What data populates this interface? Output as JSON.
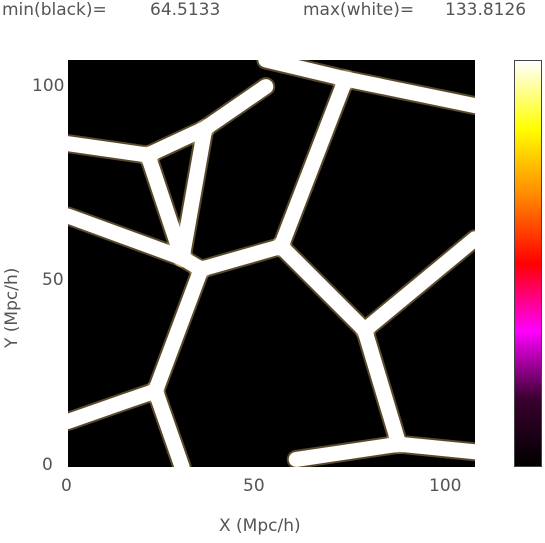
{
  "header": {
    "min_label": "min(black)=",
    "min_value": "64.5133",
    "max_label": "max(white)=",
    "max_value": "133.8126"
  },
  "chart_data": {
    "type": "heatmap",
    "title": "",
    "xlabel": "X (Mpc/h)",
    "ylabel": "Y (Mpc/h)",
    "xlim": [
      0,
      107
    ],
    "ylim": [
      0,
      107
    ],
    "x_ticks": [
      "0",
      "50",
      "100"
    ],
    "y_ticks": [
      "0",
      "50",
      "100"
    ],
    "colorbar": {
      "min": 64.5133,
      "max": 133.8126,
      "colors": [
        "#000000",
        "#3a0030",
        "#ff00ff",
        "#ff0000",
        "#ff8800",
        "#ffff00",
        "#ffffff"
      ]
    },
    "filaments": [
      [
        [
          0,
          85
        ],
        [
          21,
          82
        ],
        [
          36,
          89
        ],
        [
          52,
          100
        ]
      ],
      [
        [
          21,
          82
        ],
        [
          30,
          55
        ]
      ],
      [
        [
          36,
          89
        ],
        [
          30,
          55
        ]
      ],
      [
        [
          0,
          66
        ],
        [
          30,
          55
        ]
      ],
      [
        [
          30,
          55
        ],
        [
          35,
          52
        ],
        [
          56,
          58
        ]
      ],
      [
        [
          56,
          58
        ],
        [
          73,
          102
        ]
      ],
      [
        [
          52,
          107
        ],
        [
          73,
          102
        ],
        [
          107,
          95
        ]
      ],
      [
        [
          56,
          58
        ],
        [
          78,
          36
        ],
        [
          107,
          60
        ]
      ],
      [
        [
          78,
          36
        ],
        [
          87,
          6
        ],
        [
          107,
          4
        ]
      ],
      [
        [
          35,
          52
        ],
        [
          23,
          20
        ],
        [
          30,
          0
        ]
      ],
      [
        [
          23,
          20
        ],
        [
          0,
          12
        ]
      ],
      [
        [
          60,
          2
        ],
        [
          87,
          6
        ]
      ]
    ]
  }
}
